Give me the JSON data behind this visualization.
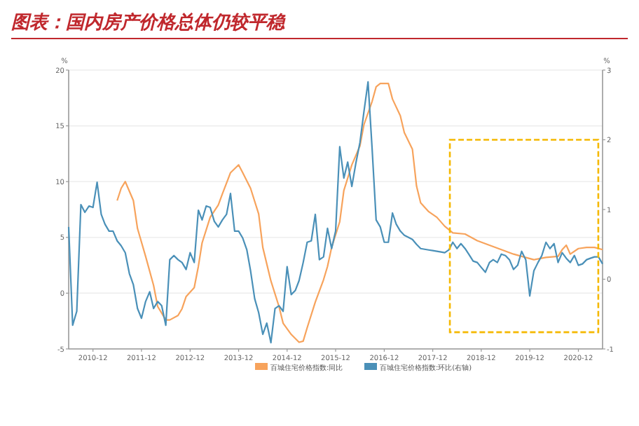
{
  "chart_data": {
    "type": "line",
    "title": "图表：国内房产价格总体仍较平稳",
    "ylabel": "%",
    "y2label": "%",
    "x": [
      "2010-06",
      "2010-07",
      "2010-08",
      "2010-09",
      "2010-10",
      "2010-11",
      "2010-12",
      "2011-01",
      "2011-02",
      "2011-03",
      "2011-04",
      "2011-05",
      "2011-06",
      "2011-07",
      "2011-08",
      "2011-09",
      "2011-10",
      "2011-11",
      "2011-12",
      "2012-01",
      "2012-02",
      "2012-03",
      "2012-04",
      "2012-05",
      "2012-06",
      "2012-07",
      "2012-08",
      "2012-09",
      "2012-10",
      "2012-11",
      "2012-12",
      "2013-01",
      "2013-02",
      "2013-03",
      "2013-04",
      "2013-05",
      "2013-06",
      "2013-07",
      "2013-08",
      "2013-09",
      "2013-10",
      "2013-11",
      "2013-12",
      "2014-01",
      "2014-02",
      "2014-03",
      "2014-04",
      "2014-05",
      "2014-06",
      "2014-07",
      "2014-08",
      "2014-09",
      "2014-10",
      "2014-11",
      "2014-12",
      "2015-01",
      "2015-02",
      "2015-03",
      "2015-04",
      "2015-05",
      "2015-06",
      "2015-07",
      "2015-08",
      "2015-09",
      "2015-10",
      "2015-11",
      "2015-12",
      "2016-01",
      "2016-02",
      "2016-03",
      "2016-04",
      "2016-05",
      "2016-06",
      "2016-07",
      "2016-08",
      "2016-09",
      "2016-10",
      "2016-11",
      "2016-12",
      "2017-01",
      "2017-02",
      "2017-03",
      "2017-04",
      "2017-05",
      "2017-06",
      "2017-07",
      "2017-08",
      "2017-09",
      "2017-10",
      "2017-11",
      "2017-12",
      "2018-01",
      "2018-02",
      "2018-03",
      "2018-04",
      "2018-05",
      "2018-06",
      "2018-07",
      "2018-08",
      "2018-09",
      "2018-10",
      "2018-11",
      "2018-12",
      "2019-01",
      "2019-02",
      "2019-03",
      "2019-04",
      "2019-05",
      "2019-06",
      "2019-07",
      "2019-08",
      "2019-09",
      "2019-10",
      "2019-11",
      "2019-12",
      "2020-01",
      "2020-02",
      "2020-03",
      "2020-04",
      "2020-05",
      "2020-06",
      "2020-07",
      "2020-08",
      "2020-09",
      "2020-10",
      "2020-11",
      "2020-12",
      "2021-01",
      "2021-02",
      "2021-03",
      "2021-04",
      "2021-05",
      "2021-06"
    ],
    "series": [
      {
        "name": "百城住宅价格指数:同比",
        "color": "#f7a35c",
        "x": [
          "2011-06",
          "2011-07",
          "2011-08",
          "2011-10",
          "2011-11",
          "2012-01",
          "2012-03",
          "2012-04",
          "2012-06",
          "2012-07",
          "2012-09",
          "2012-10",
          "2012-11",
          "2013-01",
          "2013-02",
          "2013-03",
          "2013-05",
          "2013-07",
          "2013-08",
          "2013-10",
          "2013-12",
          "2014-01",
          "2014-03",
          "2014-05",
          "2014-06",
          "2014-08",
          "2014-10",
          "2014-11",
          "2015-01",
          "2015-03",
          "2015-04",
          "2015-05",
          "2015-07",
          "2015-09",
          "2015-10",
          "2015-11",
          "2016-01",
          "2016-02",
          "2016-04",
          "2016-06",
          "2016-07",
          "2016-09",
          "2016-10",
          "2016-11",
          "2017-01",
          "2017-02",
          "2017-04",
          "2017-05",
          "2017-07",
          "2017-08",
          "2017-09",
          "2017-11",
          "2018-01",
          "2018-03",
          "2018-05",
          "2018-08",
          "2018-11",
          "2019-02",
          "2019-05",
          "2019-08",
          "2019-10",
          "2020-01",
          "2020-04",
          "2020-07",
          "2020-08",
          "2020-09",
          "2020-10",
          "2020-12",
          "2021-02",
          "2021-04",
          "2021-06"
        ],
        "values": [
          8.3,
          9.4,
          10.0,
          8.3,
          5.8,
          3.3,
          0.7,
          -1.2,
          -2.4,
          -2.4,
          -2.0,
          -1.4,
          -0.3,
          0.5,
          2.4,
          4.5,
          6.8,
          7.9,
          8.9,
          10.8,
          11.5,
          10.8,
          9.4,
          7.1,
          4.1,
          1.1,
          -1.2,
          -2.7,
          -3.7,
          -4.4,
          -4.3,
          -3.1,
          -0.8,
          1.2,
          2.4,
          4.1,
          6.4,
          9.2,
          11.5,
          13.2,
          15.1,
          17.2,
          18.5,
          18.8,
          18.8,
          17.4,
          15.9,
          14.4,
          12.9,
          9.6,
          8.1,
          7.3,
          6.8,
          6.0,
          5.4,
          5.3,
          4.7,
          4.3,
          3.9,
          3.5,
          3.3,
          3.0,
          3.2,
          3.3,
          3.9,
          4.3,
          3.5,
          4.0,
          4.1,
          4.1,
          3.9
        ]
      },
      {
        "name": "百城住宅价格指数:环比(右轴)",
        "color": "#4a90b8",
        "axis": "y2",
        "values": [
          0.75,
          -0.66,
          -0.46,
          1.07,
          0.96,
          1.05,
          1.03,
          1.39,
          0.93,
          0.79,
          0.69,
          0.69,
          0.55,
          0.48,
          0.38,
          0.08,
          -0.08,
          -0.42,
          -0.56,
          -0.32,
          -0.18,
          -0.42,
          -0.32,
          -0.38,
          -0.66,
          0.28,
          0.34,
          0.28,
          0.24,
          0.14,
          0.38,
          0.24,
          0.99,
          0.85,
          1.05,
          1.03,
          0.83,
          0.75,
          0.85,
          0.93,
          1.23,
          0.69,
          0.69,
          0.59,
          0.42,
          0.12,
          -0.28,
          -0.48,
          -0.79,
          -0.63,
          -0.91,
          -0.42,
          -0.38,
          -0.46,
          0.18,
          -0.22,
          -0.16,
          -0.02,
          0.24,
          0.53,
          0.55,
          0.93,
          0.28,
          0.32,
          0.73,
          0.44,
          0.69,
          1.9,
          1.45,
          1.68,
          1.33,
          1.66,
          1.96,
          2.4,
          2.83,
          1.86,
          0.85,
          0.75,
          0.53,
          0.53,
          0.95,
          0.79,
          0.69,
          0.63,
          0.6,
          0.57,
          0.5,
          0.44,
          0.43,
          0.42,
          0.41,
          0.4,
          0.39,
          0.38,
          0.42,
          0.53,
          0.44,
          0.51,
          0.44,
          0.35,
          0.26,
          0.24,
          0.17,
          0.1,
          0.24,
          0.28,
          0.24,
          0.36,
          0.34,
          0.28,
          0.14,
          0.2,
          0.4,
          0.28,
          -0.24,
          0.12,
          0.24,
          0.34,
          0.53,
          0.44,
          0.51,
          0.24,
          0.38,
          0.3,
          0.24,
          0.34,
          0.2,
          0.22,
          0.28,
          0.3,
          0.32,
          0.32,
          0.22
        ]
      }
    ],
    "xlim": [
      "2010-06",
      "2021-06"
    ],
    "xticks": [
      {
        "value": "2010-12",
        "label": "2010-12"
      },
      {
        "value": "2011-12",
        "label": "2011-12"
      },
      {
        "value": "2012-12",
        "label": "2012-12"
      },
      {
        "value": "2013-12",
        "label": "2013-12"
      },
      {
        "value": "2014-12",
        "label": "2014-12"
      },
      {
        "value": "2015-12",
        "label": "2015-12"
      },
      {
        "value": "2016-12",
        "label": "2016-12"
      },
      {
        "value": "2017-12",
        "label": "2017-12"
      },
      {
        "value": "2018-12",
        "label": "2018-12"
      },
      {
        "value": "2019-12",
        "label": "2019-12"
      },
      {
        "value": "2020-12",
        "label": "2020-12"
      }
    ],
    "ylim": [
      -5,
      20
    ],
    "yticks": [
      -5,
      0,
      5,
      10,
      15,
      20
    ],
    "y2lim": [
      -1,
      3
    ],
    "y2ticks": [
      -1,
      0,
      1,
      2,
      3
    ],
    "grid": "y",
    "legend": "bottom"
  }
}
